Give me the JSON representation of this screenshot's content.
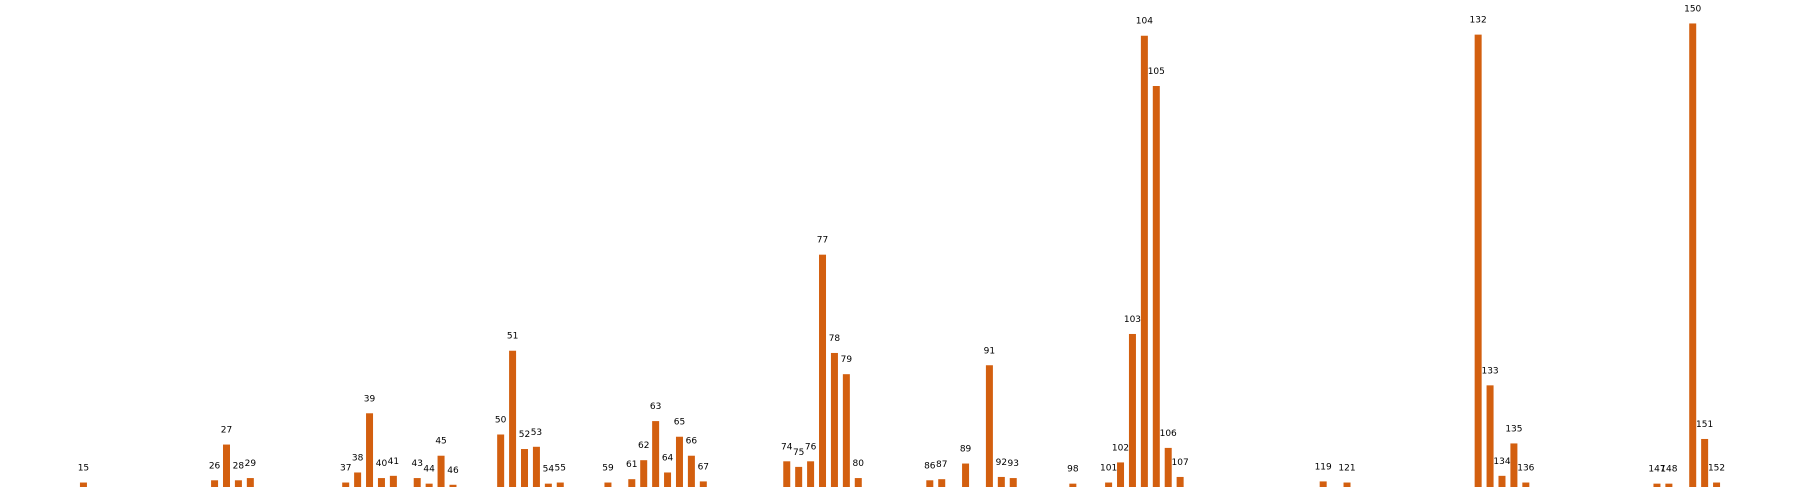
{
  "chart_data": {
    "type": "bar",
    "x": [
      15,
      26,
      27,
      28,
      29,
      37,
      38,
      39,
      40,
      41,
      43,
      44,
      45,
      46,
      50,
      51,
      52,
      53,
      54,
      55,
      59,
      61,
      62,
      63,
      64,
      65,
      66,
      67,
      74,
      75,
      76,
      77,
      78,
      79,
      80,
      86,
      87,
      89,
      91,
      92,
      93,
      98,
      101,
      102,
      103,
      104,
      105,
      106,
      107,
      119,
      121,
      132,
      133,
      134,
      135,
      136,
      147,
      148,
      150,
      151,
      152
    ],
    "values": [
      4,
      6,
      38,
      6,
      8,
      4,
      13,
      66,
      8,
      10,
      8,
      3,
      28,
      2,
      47,
      122,
      34,
      36,
      3,
      4,
      4,
      7,
      24,
      59,
      13,
      45,
      28,
      5,
      23,
      18,
      23,
      208,
      120,
      101,
      8,
      6,
      7,
      21,
      109,
      9,
      8,
      3,
      4,
      22,
      137,
      404,
      359,
      35,
      9,
      5,
      4,
      405,
      91,
      10,
      39,
      4,
      3,
      3,
      415,
      43,
      4
    ],
    "color": "#d35f0f",
    "xlim": [
      8,
      159
    ],
    "ylim": [
      0,
      436
    ]
  }
}
